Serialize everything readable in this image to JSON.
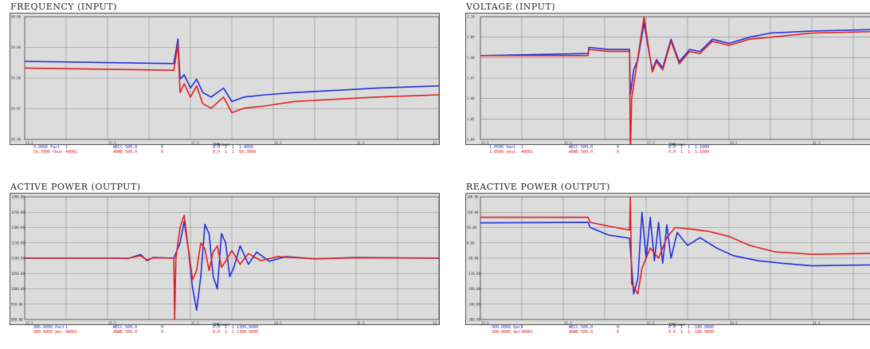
{
  "chart_data": [
    {
      "type": "line",
      "title": "FREQUENCY (INPUT)",
      "xlim": [
        23.5,
        33.5
      ],
      "ylim": [
        59.955,
        60.01
      ],
      "series": [
        {
          "color": "#1f2fe0",
          "points": [
            [
              23.5,
              59.99
            ],
            [
              27.1,
              59.989
            ],
            [
              27.2,
              60.0
            ],
            [
              27.25,
              59.982
            ],
            [
              27.35,
              59.984
            ],
            [
              27.5,
              59.978
            ],
            [
              27.65,
              59.982
            ],
            [
              27.8,
              59.976
            ],
            [
              28.0,
              59.974
            ],
            [
              28.3,
              59.978
            ],
            [
              28.5,
              59.972
            ],
            [
              28.8,
              59.974
            ],
            [
              29.3,
              59.975
            ],
            [
              30.0,
              59.976
            ],
            [
              31.0,
              59.977
            ],
            [
              32.0,
              59.978
            ],
            [
              33.5,
              59.979
            ]
          ]
        },
        {
          "color": "#e02020",
          "points": [
            [
              23.5,
              59.987
            ],
            [
              27.1,
              59.986
            ],
            [
              27.2,
              59.998
            ],
            [
              27.25,
              59.976
            ],
            [
              27.35,
              59.98
            ],
            [
              27.5,
              59.974
            ],
            [
              27.65,
              59.979
            ],
            [
              27.8,
              59.971
            ],
            [
              28.0,
              59.969
            ],
            [
              28.3,
              59.974
            ],
            [
              28.5,
              59.967
            ],
            [
              28.8,
              59.969
            ],
            [
              29.3,
              59.97
            ],
            [
              30.0,
              59.972
            ],
            [
              31.0,
              59.973
            ],
            [
              32.0,
              59.974
            ],
            [
              33.5,
              59.975
            ]
          ]
        }
      ],
      "yticks": [
        "60.00",
        "59.99",
        "59.98",
        "59.97",
        "59.96"
      ],
      "xticks": [
        "23.5",
        "25.5",
        "27.5",
        "29.5",
        "31.5",
        "33.5"
      ],
      "xlabel": "TIME(sec)",
      "legend": [
        {
          "color": "#1f2fe0",
          "cols": [
            "0.9950 Fact",
            "1",
            "WECC 500.0",
            "0",
            "0.0  1  1  1.0050"
          ]
        },
        {
          "color": "#e02020",
          "cols": [
            "59.7000 fbus",
            "40061",
            "ARWE 500.0",
            "0",
            "0.0  1  1  60.3000"
          ]
        }
      ]
    },
    {
      "type": "line",
      "title": "VOLTAGE (INPUT)",
      "xlim": [
        23.5,
        33.5
      ],
      "ylim": [
        1.04,
        1.1
      ],
      "series": [
        {
          "color": "#1f2fe0",
          "points": [
            [
              23.5,
              1.081
            ],
            [
              26.1,
              1.082
            ],
            [
              26.12,
              1.085
            ],
            [
              26.6,
              1.084
            ],
            [
              27.1,
              1.084
            ],
            [
              27.12,
              1.062
            ],
            [
              27.2,
              1.074
            ],
            [
              27.3,
              1.079
            ],
            [
              27.45,
              1.097
            ],
            [
              27.55,
              1.085
            ],
            [
              27.65,
              1.074
            ],
            [
              27.75,
              1.079
            ],
            [
              27.9,
              1.075
            ],
            [
              28.1,
              1.089
            ],
            [
              28.3,
              1.078
            ],
            [
              28.55,
              1.084
            ],
            [
              28.8,
              1.083
            ],
            [
              29.1,
              1.089
            ],
            [
              29.5,
              1.087
            ],
            [
              30.0,
              1.09
            ],
            [
              30.5,
              1.092
            ],
            [
              31.5,
              1.093
            ],
            [
              33.5,
              1.094
            ]
          ]
        },
        {
          "color": "#e02020",
          "points": [
            [
              23.5,
              1.081
            ],
            [
              26.1,
              1.081
            ],
            [
              26.12,
              1.084
            ],
            [
              26.6,
              1.083
            ],
            [
              27.1,
              1.083
            ],
            [
              27.12,
              1.03
            ],
            [
              27.15,
              1.06
            ],
            [
              27.3,
              1.08
            ],
            [
              27.45,
              1.1
            ],
            [
              27.55,
              1.086
            ],
            [
              27.65,
              1.073
            ],
            [
              27.75,
              1.078
            ],
            [
              27.9,
              1.074
            ],
            [
              28.1,
              1.088
            ],
            [
              28.3,
              1.077
            ],
            [
              28.55,
              1.083
            ],
            [
              28.8,
              1.082
            ],
            [
              29.1,
              1.088
            ],
            [
              29.5,
              1.086
            ],
            [
              30.0,
              1.089
            ],
            [
              30.5,
              1.09
            ],
            [
              31.5,
              1.092
            ],
            [
              33.5,
              1.093
            ]
          ]
        }
      ],
      "yticks": [
        "1.10",
        "1.09",
        "1.08",
        "1.07",
        "1.06",
        "1.05",
        "1.04"
      ],
      "xticks": [
        "23.5",
        "25.5",
        "27.5",
        "29.5",
        "31.5",
        "33.5"
      ],
      "xlabel": "TIME(sec)",
      "legend": [
        {
          "color": "#1f2fe0",
          "cols": [
            "1.0500 Vact",
            "1",
            "WECC 500.0",
            "0",
            "0.0  1  1  1.1000"
          ]
        },
        {
          "color": "#e02020",
          "cols": [
            "1.0500 vbus",
            "40061",
            "ARWE 500.0",
            "0",
            "0.0  1  1  1.1000"
          ]
        }
      ]
    },
    {
      "type": "line",
      "title": "ACTIVE POWER (OUTPUT)",
      "xlim": [
        23.5,
        33.5
      ],
      "ylim": [
        900,
        1300
      ],
      "series": [
        {
          "color": "#1f2fe0",
          "points": [
            [
              23.5,
              1100
            ],
            [
              25.5,
              1100
            ],
            [
              26.0,
              1099
            ],
            [
              26.3,
              1112
            ],
            [
              26.45,
              1092
            ],
            [
              26.6,
              1102
            ],
            [
              27.1,
              1100
            ],
            [
              27.25,
              1150
            ],
            [
              27.35,
              1220
            ],
            [
              27.45,
              1130
            ],
            [
              27.55,
              1005
            ],
            [
              27.65,
              930
            ],
            [
              27.75,
              1040
            ],
            [
              27.85,
              1210
            ],
            [
              27.95,
              1180
            ],
            [
              28.05,
              1040
            ],
            [
              28.15,
              1000
            ],
            [
              28.25,
              1180
            ],
            [
              28.35,
              1150
            ],
            [
              28.45,
              1040
            ],
            [
              28.55,
              1070
            ],
            [
              28.7,
              1140
            ],
            [
              28.9,
              1080
            ],
            [
              29.1,
              1120
            ],
            [
              29.4,
              1090
            ],
            [
              29.8,
              1105
            ],
            [
              30.5,
              1098
            ],
            [
              31.5,
              1102
            ],
            [
              33.5,
              1100
            ]
          ]
        },
        {
          "color": "#e02020",
          "points": [
            [
              23.5,
              1100
            ],
            [
              25.5,
              1100
            ],
            [
              26.0,
              1100
            ],
            [
              26.3,
              1108
            ],
            [
              26.45,
              1094
            ],
            [
              26.6,
              1101
            ],
            [
              27.1,
              1100
            ],
            [
              27.12,
              900
            ],
            [
              27.15,
              1100
            ],
            [
              27.25,
              1200
            ],
            [
              27.35,
              1240
            ],
            [
              27.45,
              1130
            ],
            [
              27.55,
              1030
            ],
            [
              27.65,
              1060
            ],
            [
              27.75,
              1150
            ],
            [
              27.85,
              1130
            ],
            [
              27.95,
              1060
            ],
            [
              28.05,
              1120
            ],
            [
              28.15,
              1140
            ],
            [
              28.25,
              1070
            ],
            [
              28.35,
              1090
            ],
            [
              28.5,
              1125
            ],
            [
              28.7,
              1080
            ],
            [
              28.9,
              1115
            ],
            [
              29.2,
              1092
            ],
            [
              29.6,
              1105
            ],
            [
              30.5,
              1098
            ],
            [
              31.5,
              1101
            ],
            [
              33.5,
              1100
            ]
          ]
        }
      ],
      "yticks": [
        "1300.00",
        "1250.00",
        "1200.00",
        "1150.00",
        "1100.00",
        "1050.00",
        "1000.00",
        "950.00",
        "900.00"
      ],
      "xticks": [
        "23.5",
        "25.5",
        "27.5",
        "29.5",
        "31.5",
        "33.5"
      ],
      "xlabel": "TIME(sec)",
      "legend": [
        {
          "color": "#1f2fe0",
          "cols": [
            "900.0000 Pact",
            "1",
            "WECC 500.0",
            "0",
            "0.0  1  1 1300.0000"
          ]
        },
        {
          "color": "#e02020",
          "cols": [
            "900.0000 pbr",
            "40061",
            "ARWE 500.0",
            "0",
            "0.0  1  1 1300.0000"
          ]
        }
      ]
    },
    {
      "type": "line",
      "title": "REACTIVE POWER (OUTPUT)",
      "xlim": [
        23.5,
        33.5
      ],
      "ylim": [
        -300,
        180
      ],
      "series": [
        {
          "color": "#1f2fe0",
          "points": [
            [
              23.5,
              78
            ],
            [
              26.1,
              80
            ],
            [
              26.15,
              60
            ],
            [
              26.6,
              30
            ],
            [
              27.1,
              18
            ],
            [
              27.2,
              -200
            ],
            [
              27.3,
              -140
            ],
            [
              27.4,
              120
            ],
            [
              27.5,
              -60
            ],
            [
              27.6,
              100
            ],
            [
              27.7,
              -70
            ],
            [
              27.8,
              80
            ],
            [
              27.9,
              -80
            ],
            [
              28.0,
              70
            ],
            [
              28.1,
              -60
            ],
            [
              28.25,
              40
            ],
            [
              28.5,
              -10
            ],
            [
              28.8,
              20
            ],
            [
              29.2,
              -20
            ],
            [
              29.6,
              -50
            ],
            [
              30.2,
              -70
            ],
            [
              30.8,
              -80
            ],
            [
              31.5,
              -90
            ],
            [
              33.5,
              -85
            ]
          ]
        },
        {
          "color": "#e02020",
          "points": [
            [
              23.5,
              100
            ],
            [
              26.1,
              100
            ],
            [
              26.15,
              80
            ],
            [
              26.6,
              65
            ],
            [
              27.1,
              50
            ],
            [
              27.12,
              180
            ],
            [
              27.15,
              -160
            ],
            [
              27.3,
              -200
            ],
            [
              27.4,
              -100
            ],
            [
              27.6,
              -20
            ],
            [
              27.8,
              -60
            ],
            [
              28.0,
              20
            ],
            [
              28.2,
              60
            ],
            [
              28.5,
              55
            ],
            [
              29.0,
              45
            ],
            [
              29.5,
              25
            ],
            [
              30.0,
              -10
            ],
            [
              30.6,
              -35
            ],
            [
              31.5,
              -45
            ],
            [
              33.5,
              -40
            ]
          ]
        }
      ],
      "yticks": [
        "180.00",
        "120.00",
        "60.00",
        "0.00",
        "-60.00",
        "-120.00",
        "-180.00",
        "-240.00",
        "-300.00"
      ],
      "xticks": [
        "23.5",
        "25.5",
        "27.5",
        "29.5",
        "31.5",
        "33.5"
      ],
      "xlabel": "TIME(sec)",
      "legend": [
        {
          "color": "#1f2fe0",
          "cols": [
            "-300.0000 Qact",
            "1",
            "WECC 500.0",
            "0",
            "0.0  1  1 -180.0000"
          ]
        },
        {
          "color": "#e02020",
          "cols": [
            "-300.0000 qbr",
            "40061",
            "ARWE 500.0",
            "0",
            "0.0  1  1 -180.0000"
          ]
        }
      ]
    }
  ]
}
